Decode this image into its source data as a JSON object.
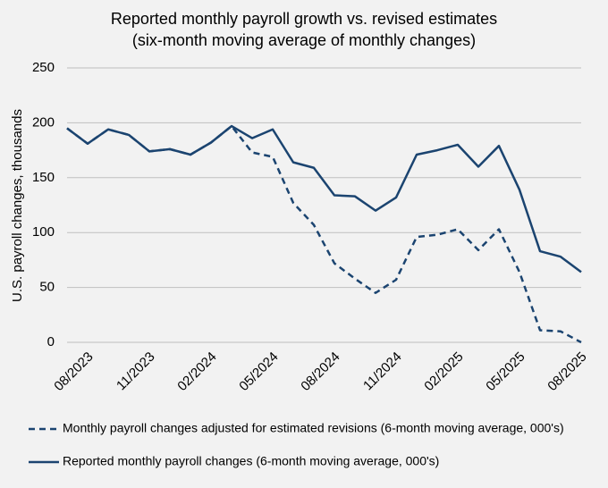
{
  "chart_data": {
    "type": "line",
    "title": "Reported monthly payroll growth vs. revised estimates",
    "subtitle": "(six-month moving average of monthly changes)",
    "y_label": "U.S. payroll changes, thousands",
    "categories": [
      null,
      "08/2023",
      null,
      null,
      "11/2023",
      null,
      null,
      "02/2024",
      null,
      null,
      "05/2024",
      null,
      null,
      "08/2024",
      null,
      null,
      "11/2024",
      null,
      null,
      "02/2025",
      null,
      null,
      "05/2025",
      null,
      null,
      "08/2025"
    ],
    "series": [
      {
        "name": "Monthly payroll changes adjusted for estimated revisions (6-month moving average, 000's)",
        "color": "#1b4470",
        "dashed": true,
        "values": [
          195,
          181,
          194,
          189,
          174,
          176,
          171,
          182,
          197,
          173,
          169,
          127,
          107,
          72,
          58,
          45,
          57,
          96,
          98,
          103,
          84,
          103,
          64,
          11,
          10,
          0
        ]
      },
      {
        "name": "Reported monthly payroll changes (6-month moving average, 000's)",
        "color": "#1b4470",
        "dashed": false,
        "values": [
          195,
          181,
          194,
          189,
          174,
          176,
          171,
          182,
          197,
          186,
          194,
          164,
          159,
          134,
          133,
          120,
          132,
          171,
          175,
          180,
          160,
          179,
          139,
          83,
          78,
          64
        ]
      }
    ],
    "ylim": [
      0,
      250
    ],
    "yticks": [
      0,
      50,
      100,
      150,
      200,
      250
    ],
    "grid": true,
    "legend": "bottom"
  }
}
